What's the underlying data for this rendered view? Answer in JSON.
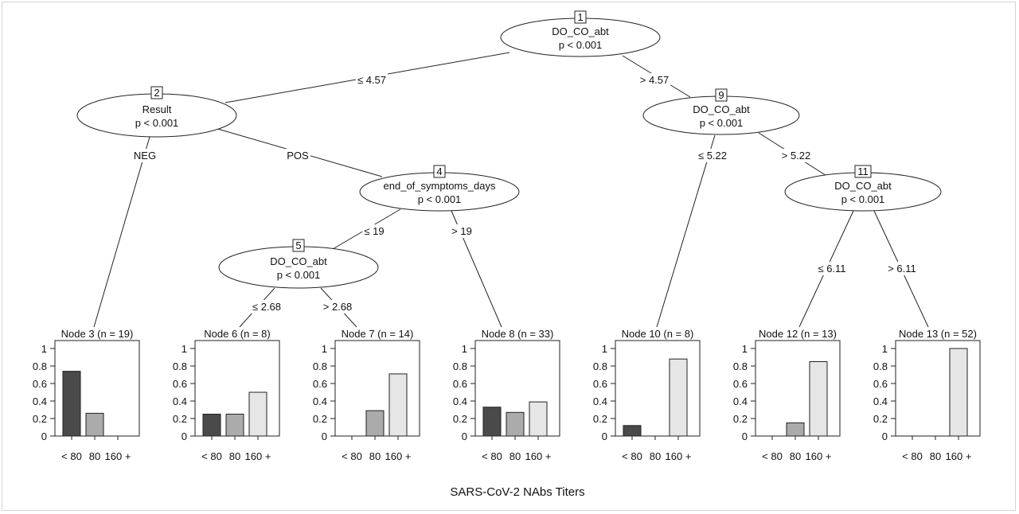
{
  "caption": "SARS-CoV-2 NAbs Titers",
  "inner_nodes": [
    {
      "id": "1",
      "var": "DO_CO_abt",
      "p": "p < 0.001"
    },
    {
      "id": "2",
      "var": "Result",
      "p": "p < 0.001"
    },
    {
      "id": "4",
      "var": "end_of_symptoms_days",
      "p": "p < 0.001"
    },
    {
      "id": "5",
      "var": "DO_CO_abt",
      "p": "p < 0.001"
    },
    {
      "id": "9",
      "var": "DO_CO_abt",
      "p": "p < 0.001"
    },
    {
      "id": "11",
      "var": "DO_CO_abt",
      "p": "p < 0.001"
    }
  ],
  "edge_labels": [
    {
      "from": "1",
      "to": "2",
      "label": "≤ 4.57"
    },
    {
      "from": "1",
      "to": "9",
      "label": "> 4.57"
    },
    {
      "from": "2",
      "to": "3",
      "label": "NEG"
    },
    {
      "from": "2",
      "to": "4",
      "label": "POS"
    },
    {
      "from": "4",
      "to": "5",
      "label": "≤ 19"
    },
    {
      "from": "4",
      "to": "8",
      "label": "> 19"
    },
    {
      "from": "5",
      "to": "6",
      "label": "≤ 2.68"
    },
    {
      "from": "5",
      "to": "7",
      "label": "> 2.68"
    },
    {
      "from": "9",
      "to": "10",
      "label": "≤ 5.22"
    },
    {
      "from": "9",
      "to": "11",
      "label": "> 5.22"
    },
    {
      "from": "11",
      "to": "12",
      "label": "≤ 6.11"
    },
    {
      "from": "11",
      "to": "13",
      "label": "> 6.11"
    }
  ],
  "chart_data": {
    "type": "bar",
    "categories": [
      "< 80",
      "80",
      "160 +"
    ],
    "y_ticks": [
      "0",
      "0.2",
      "0.4",
      "0.6",
      "0.8",
      "1"
    ],
    "ylim": [
      0,
      1
    ],
    "colors": [
      "#4a4a4a",
      "#ababab",
      "#e6e6e6"
    ],
    "panels": [
      {
        "title": "Node 3 (n = 19)",
        "values": [
          0.74,
          0.26,
          0.0
        ]
      },
      {
        "title": "Node 6 (n = 8)",
        "values": [
          0.25,
          0.25,
          0.5
        ]
      },
      {
        "title": "Node 7 (n = 14)",
        "values": [
          0.0,
          0.29,
          0.71
        ]
      },
      {
        "title": "Node 8 (n = 33)",
        "values": [
          0.33,
          0.27,
          0.39
        ]
      },
      {
        "title": "Node 10 (n = 8)",
        "values": [
          0.12,
          0.0,
          0.88
        ]
      },
      {
        "title": "Node 12 (n = 13)",
        "values": [
          0.0,
          0.15,
          0.85
        ]
      },
      {
        "title": "Node 13 (n = 52)",
        "values": [
          0.0,
          0.0,
          1.0
        ]
      }
    ]
  }
}
